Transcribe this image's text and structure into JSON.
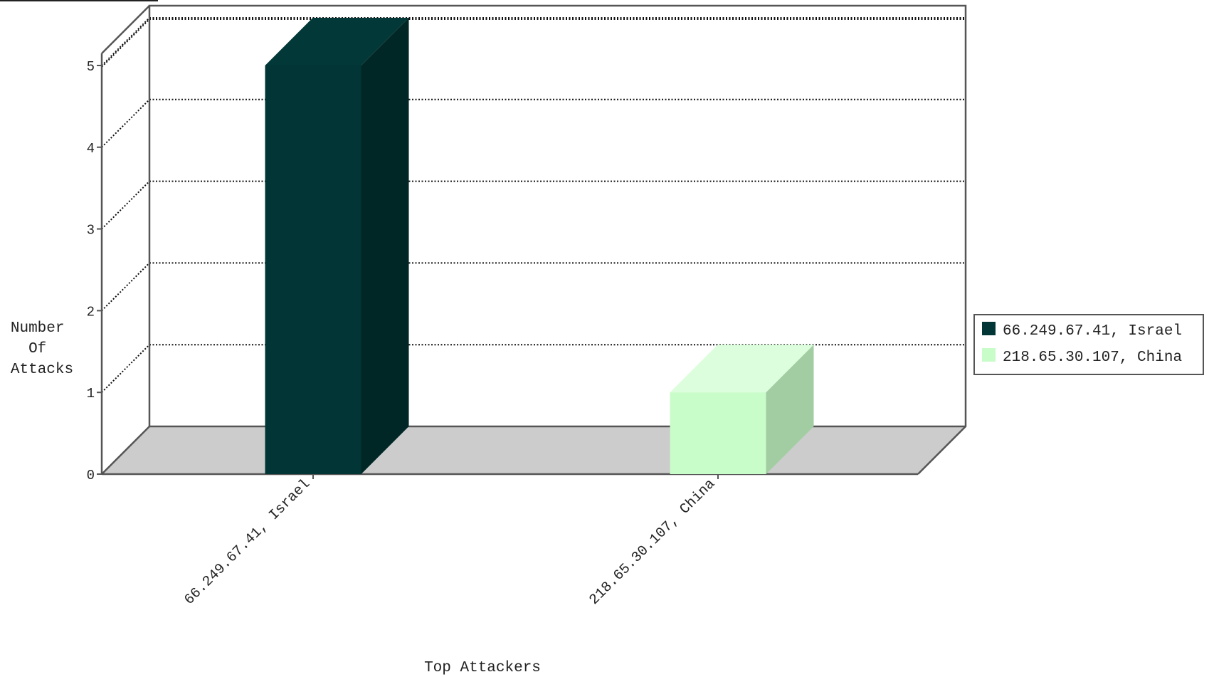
{
  "chart_data": {
    "type": "bar",
    "title": "",
    "xlabel": "Top Attackers",
    "ylabel_lines": [
      "Number",
      "Of",
      "Attacks"
    ],
    "categories": [
      "66.249.67.41, Israel",
      "218.65.30.107, China"
    ],
    "values": [
      5,
      1
    ],
    "ylim": [
      0,
      5
    ],
    "yticks": [
      "0",
      "1",
      "2",
      "3",
      "4",
      "5"
    ],
    "grid": true,
    "style": "3d",
    "legend_position": "right",
    "legend": [
      "66.249.67.41, Israel",
      "218.65.30.107, China"
    ],
    "colors": [
      {
        "front": "#023535",
        "side": "#012626",
        "top": "#023838"
      },
      {
        "front": "#c8fcc8",
        "side": "#a2cda2",
        "top": "#dcfedc"
      }
    ],
    "floor_color": "#cccccc"
  }
}
